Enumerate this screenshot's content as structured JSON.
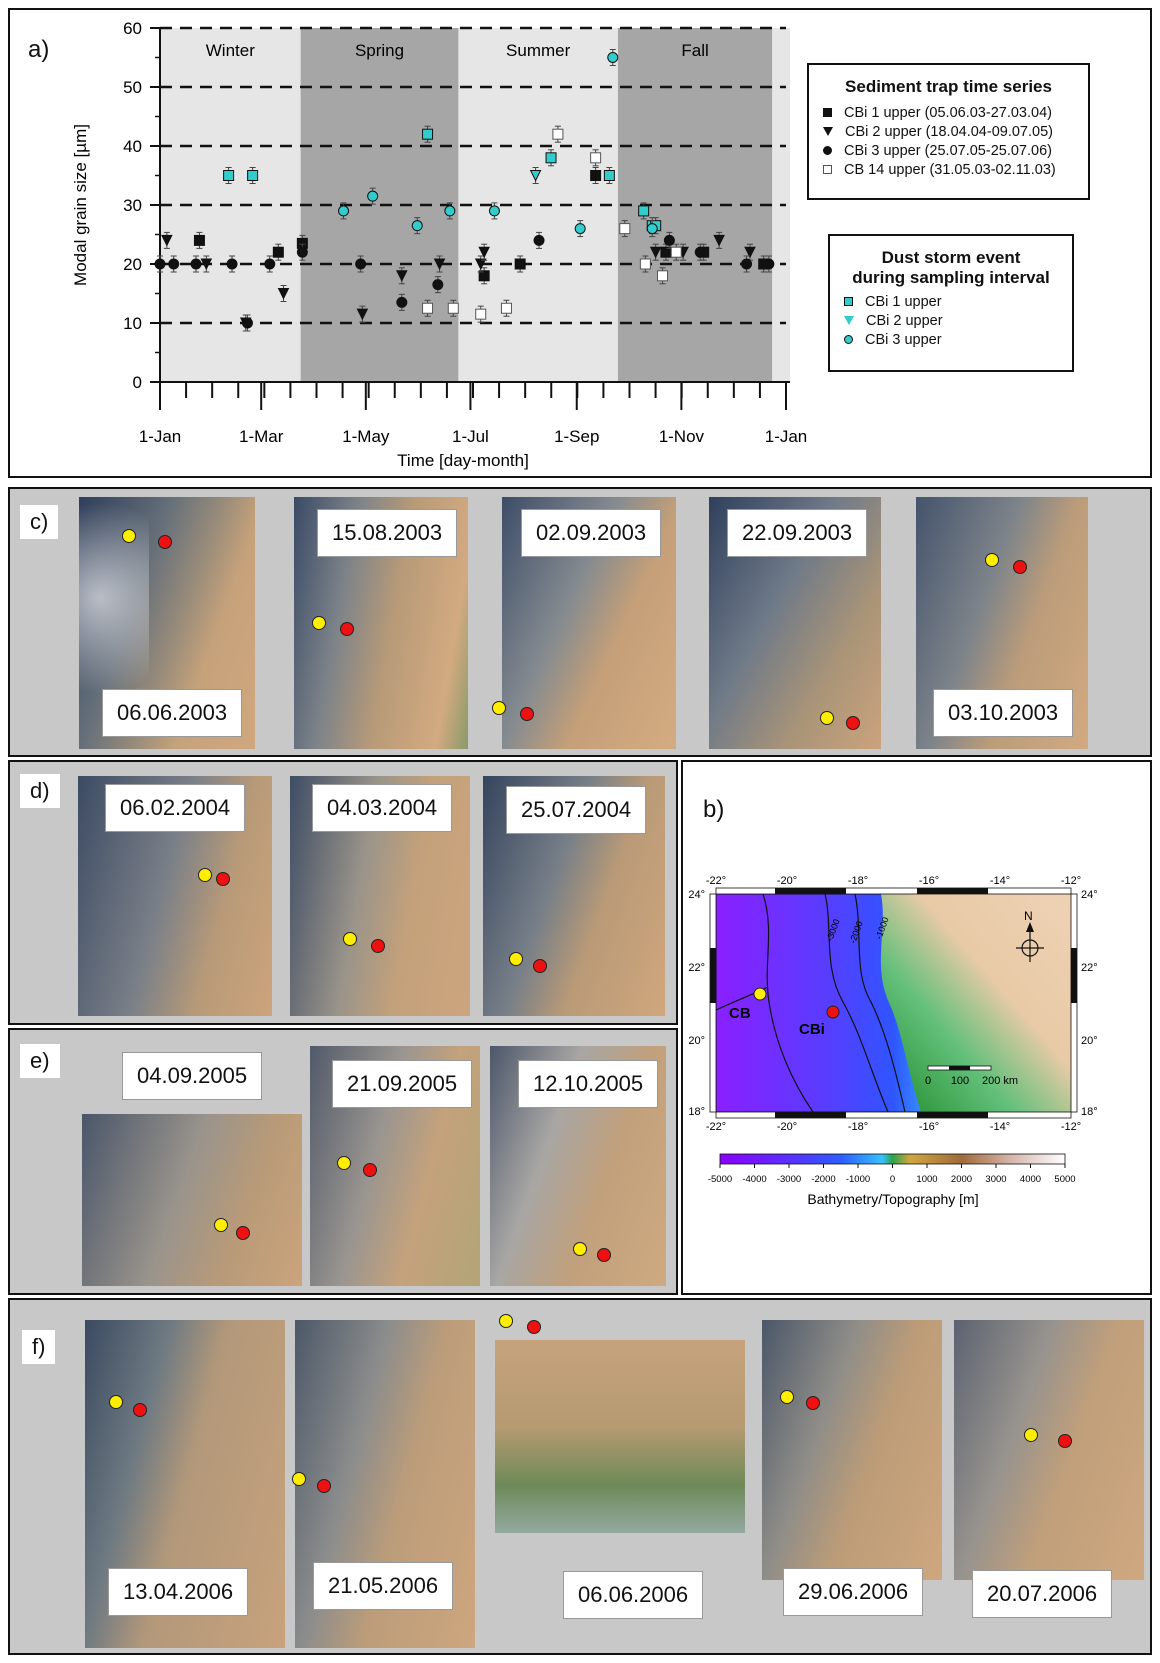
{
  "chart_data": {
    "type": "scatter",
    "panel_label": "a)",
    "xlabel": "Time [day-month]",
    "ylabel": "Modal grain size [µm]",
    "ylim": [
      0,
      60
    ],
    "yticks": [
      0,
      10,
      20,
      30,
      40,
      50,
      60
    ],
    "xlim": [
      1,
      366
    ],
    "xticks": [
      {
        "day": 1,
        "label": "1-Jan"
      },
      {
        "day": 60,
        "label": "1-Mar"
      },
      {
        "day": 121,
        "label": "1-May"
      },
      {
        "day": 182,
        "label": "1-Jul"
      },
      {
        "day": 244,
        "label": "1-Sep"
      },
      {
        "day": 305,
        "label": "1-Nov"
      },
      {
        "day": 366,
        "label": "1-Jan"
      }
    ],
    "grid": "horizontal dashed at 10-unit steps",
    "seasons": [
      {
        "label": "Winter",
        "start": 1,
        "end": 83,
        "shade": "#e6e6e6"
      },
      {
        "label": "Spring",
        "start": 83,
        "end": 175,
        "shade": "#a6a6a6"
      },
      {
        "label": "Summer",
        "start": 175,
        "end": 268,
        "shade": "#e6e6e6"
      },
      {
        "label": "Fall",
        "start": 268,
        "end": 358,
        "shade": "#a6a6a6"
      }
    ],
    "legend1": {
      "title": "Sediment trap time series",
      "entries": [
        "CBi 1 upper (05.06.03-27.03.04)",
        "CBi 2 upper (18.04.04-09.07.05)",
        "CBi 3 upper (25.07.05-25.07.06)",
        "CB 14 upper (31.05.03-02.11.03)"
      ]
    },
    "legend2": {
      "title_line1": "Dust storm event",
      "title_line2": "during sampling interval",
      "entries": [
        "CBi 1 upper",
        "CBi 2 upper",
        "CBi 3 upper"
      ]
    },
    "series": [
      {
        "marker": "square",
        "fill": "#111111",
        "points": [
          [
            24,
            24
          ],
          [
            70,
            22
          ],
          [
            84,
            23.5
          ],
          [
            190,
            18
          ],
          [
            211,
            20
          ],
          [
            255,
            35
          ],
          [
            296,
            22
          ],
          [
            318,
            22
          ],
          [
            353,
            20
          ]
        ]
      },
      {
        "marker": "triangle",
        "fill": "#111111",
        "points": [
          [
            5,
            24
          ],
          [
            28,
            20
          ],
          [
            51,
            10
          ],
          [
            73,
            15
          ],
          [
            119,
            11.5
          ],
          [
            142,
            18
          ],
          [
            164,
            20
          ],
          [
            188,
            20
          ],
          [
            190,
            22
          ],
          [
            290,
            22
          ],
          [
            306,
            22
          ],
          [
            327,
            24
          ],
          [
            345,
            22
          ]
        ]
      },
      {
        "marker": "circle",
        "fill": "#111111",
        "points": [
          [
            1,
            20
          ],
          [
            9,
            20
          ],
          [
            22,
            20
          ],
          [
            43,
            20
          ],
          [
            52,
            10
          ],
          [
            65,
            20
          ],
          [
            84,
            22
          ],
          [
            118,
            20
          ],
          [
            142,
            13.5
          ],
          [
            163,
            16.5
          ],
          [
            222,
            24
          ],
          [
            298,
            24
          ],
          [
            316,
            22
          ],
          [
            343,
            20
          ],
          [
            356,
            20
          ]
        ]
      },
      {
        "marker": "square",
        "fill": "#ffffff",
        "points": [
          [
            157,
            12.5
          ],
          [
            172,
            12.5
          ],
          [
            188,
            11.5
          ],
          [
            203,
            12.5
          ],
          [
            233,
            42
          ],
          [
            255,
            38
          ],
          [
            272,
            26
          ],
          [
            284,
            20
          ],
          [
            302,
            22
          ],
          [
            294,
            18
          ]
        ]
      },
      {
        "marker": "square",
        "fill": "#33cccc",
        "points": [
          [
            41,
            35
          ],
          [
            55,
            35
          ],
          [
            157,
            42
          ],
          [
            229,
            38
          ],
          [
            263,
            35
          ],
          [
            283,
            29
          ],
          [
            288,
            26.5
          ],
          [
            290,
            26.5
          ]
        ]
      },
      {
        "marker": "triangle-down",
        "fill": "#33cccc",
        "points": [
          [
            220,
            35
          ]
        ]
      },
      {
        "marker": "circle",
        "fill": "#33cccc",
        "points": [
          [
            108,
            29
          ],
          [
            125,
            31.5
          ],
          [
            151,
            26.5
          ],
          [
            170,
            29
          ],
          [
            196,
            29
          ],
          [
            246,
            26
          ],
          [
            288,
            26
          ],
          [
            265,
            55
          ]
        ]
      }
    ]
  },
  "panels": {
    "c": {
      "label": "c)",
      "images": [
        {
          "date": "06.06.2003"
        },
        {
          "date": "15.08.2003"
        },
        {
          "date": "02.09.2003"
        },
        {
          "date": "22.09.2003"
        },
        {
          "date": "03.10.2003"
        }
      ]
    },
    "d": {
      "label": "d)",
      "images": [
        {
          "date": "06.02.2004"
        },
        {
          "date": "04.03.2004"
        },
        {
          "date": "25.07.2004"
        }
      ]
    },
    "e": {
      "label": "e)",
      "images": [
        {
          "date": "04.09.2005"
        },
        {
          "date": "21.09.2005"
        },
        {
          "date": "12.10.2005"
        }
      ]
    },
    "f": {
      "label": "f)",
      "images": [
        {
          "date": "13.04.2006"
        },
        {
          "date": "21.05.2006"
        },
        {
          "date": "06.06.2006"
        },
        {
          "date": "29.06.2006"
        },
        {
          "date": "20.07.2006"
        }
      ]
    },
    "b": {
      "label": "b)",
      "lon_labels": [
        "-22°",
        "-20°",
        "-18°",
        "-16°",
        "-14°",
        "-12°"
      ],
      "lat_labels": [
        "24°",
        "22°",
        "20°",
        "18°"
      ],
      "contours": [
        "-3000",
        "-2000",
        "-1000"
      ],
      "site_cb": "CB",
      "site_cbi": "CBi",
      "north": "N",
      "scale_ticks": [
        "0",
        "100",
        "200 km"
      ],
      "colorbar_ticks": [
        "-5000",
        "-4000",
        "-3000",
        "-2000",
        "-1000",
        "0",
        "1000",
        "2000",
        "3000",
        "4000",
        "5000"
      ],
      "colorbar_label": "Bathymetry/Topography [m]"
    }
  }
}
